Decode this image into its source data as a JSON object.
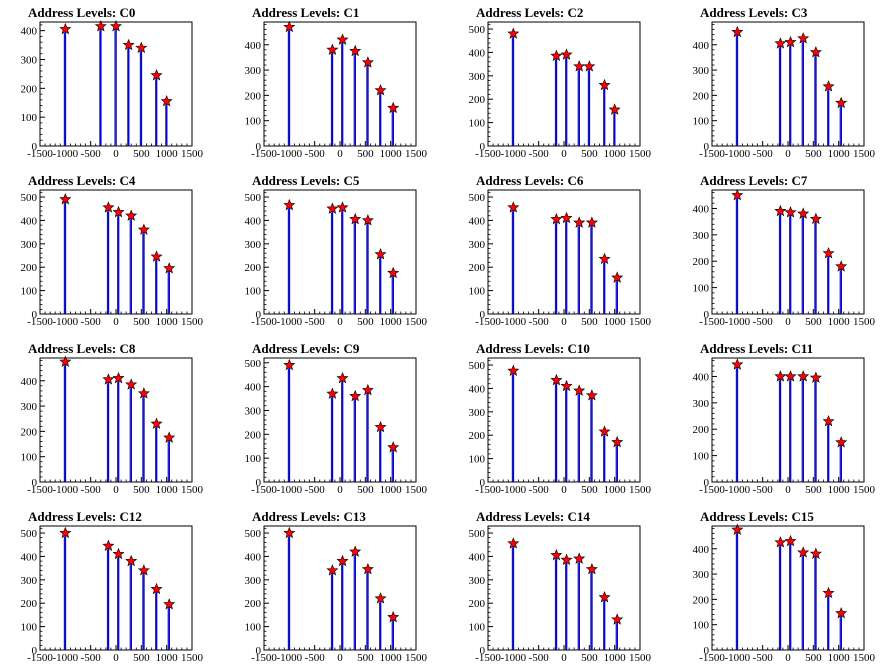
{
  "chart_data": [
    {
      "type": "bar",
      "title": "Address Levels: C0",
      "xlim": [
        -1500,
        1500
      ],
      "ylim": [
        0,
        430
      ],
      "xticks": [
        -1500,
        -1000,
        -500,
        0,
        500,
        1000,
        1500
      ],
      "yticks": [
        0,
        100,
        200,
        300,
        400
      ],
      "x": [
        -1000,
        -300,
        0,
        250,
        500,
        800,
        1000
      ],
      "peaks": [
        405,
        415,
        415,
        350,
        340,
        245,
        155
      ],
      "marker_x": [
        -1000,
        -300,
        0,
        250,
        500,
        800,
        1000
      ]
    },
    {
      "type": "bar",
      "title": "Address Levels: C1",
      "xlim": [
        -1500,
        1500
      ],
      "ylim": [
        0,
        490
      ],
      "xticks": [
        -1500,
        -1000,
        -500,
        0,
        500,
        1000,
        1500
      ],
      "yticks": [
        0,
        100,
        200,
        300,
        400
      ],
      "x": [
        -1000,
        -150,
        50,
        300,
        550,
        800,
        1050
      ],
      "peaks": [
        470,
        380,
        420,
        375,
        330,
        220,
        150
      ],
      "marker_x": [
        -1000,
        -150,
        50,
        300,
        550,
        800,
        1050
      ]
    },
    {
      "type": "bar",
      "title": "Address Levels: C2",
      "xlim": [
        -1500,
        1500
      ],
      "ylim": [
        0,
        530
      ],
      "xticks": [
        -1500,
        -1000,
        -500,
        0,
        500,
        1000,
        1500
      ],
      "yticks": [
        0,
        100,
        200,
        300,
        400,
        500
      ],
      "x": [
        -1000,
        -150,
        50,
        300,
        500,
        800,
        1000
      ],
      "peaks": [
        480,
        385,
        390,
        340,
        340,
        260,
        155
      ],
      "marker_x": [
        -1000,
        -150,
        50,
        300,
        500,
        800,
        1000
      ]
    },
    {
      "type": "bar",
      "title": "Address Levels: C3",
      "xlim": [
        -1500,
        1500
      ],
      "ylim": [
        0,
        490
      ],
      "xticks": [
        -1500,
        -1000,
        -500,
        0,
        500,
        1000,
        1500
      ],
      "yticks": [
        0,
        100,
        200,
        300,
        400
      ],
      "x": [
        -1000,
        -150,
        50,
        300,
        550,
        800,
        1050
      ],
      "peaks": [
        450,
        405,
        410,
        425,
        370,
        235,
        170
      ],
      "marker_x": [
        -1000,
        -150,
        50,
        300,
        550,
        800,
        1050
      ]
    },
    {
      "type": "bar",
      "title": "Address Levels: C4",
      "xlim": [
        -1500,
        1500
      ],
      "ylim": [
        0,
        530
      ],
      "xticks": [
        -1500,
        -1000,
        -500,
        0,
        500,
        1000,
        1500
      ],
      "yticks": [
        0,
        100,
        200,
        300,
        400,
        500
      ],
      "x": [
        -1000,
        -150,
        50,
        300,
        550,
        800,
        1050
      ],
      "peaks": [
        490,
        455,
        435,
        420,
        360,
        245,
        195
      ],
      "marker_x": [
        -1000,
        -150,
        50,
        300,
        550,
        800,
        1050
      ]
    },
    {
      "type": "bar",
      "title": "Address Levels: C5",
      "xlim": [
        -1500,
        1500
      ],
      "ylim": [
        0,
        530
      ],
      "xticks": [
        -1500,
        -1000,
        -500,
        0,
        500,
        1000,
        1500
      ],
      "yticks": [
        0,
        100,
        200,
        300,
        400,
        500
      ],
      "x": [
        -1000,
        -150,
        50,
        300,
        550,
        800,
        1050
      ],
      "peaks": [
        465,
        450,
        455,
        405,
        400,
        255,
        175
      ],
      "marker_x": [
        -1000,
        -150,
        50,
        300,
        550,
        800,
        1050
      ]
    },
    {
      "type": "bar",
      "title": "Address Levels: C6",
      "xlim": [
        -1500,
        1500
      ],
      "ylim": [
        0,
        530
      ],
      "xticks": [
        -1500,
        -1000,
        -500,
        0,
        500,
        1000,
        1500
      ],
      "yticks": [
        0,
        100,
        200,
        300,
        400,
        500
      ],
      "x": [
        -1000,
        -150,
        50,
        300,
        550,
        800,
        1050
      ],
      "peaks": [
        455,
        405,
        410,
        390,
        390,
        235,
        155
      ],
      "marker_x": [
        -1000,
        -150,
        50,
        300,
        550,
        800,
        1050
      ]
    },
    {
      "type": "bar",
      "title": "Address Levels: C7",
      "xlim": [
        -1500,
        1500
      ],
      "ylim": [
        0,
        470
      ],
      "xticks": [
        -1500,
        -1000,
        -500,
        0,
        500,
        1000,
        1500
      ],
      "yticks": [
        0,
        100,
        200,
        300,
        400
      ],
      "x": [
        -1000,
        -150,
        50,
        300,
        550,
        800,
        1050
      ],
      "peaks": [
        450,
        390,
        385,
        380,
        360,
        230,
        180
      ],
      "marker_x": [
        -1000,
        -150,
        50,
        300,
        550,
        800,
        1050
      ]
    },
    {
      "type": "bar",
      "title": "Address Levels: C8",
      "xlim": [
        -1500,
        1500
      ],
      "ylim": [
        0,
        490
      ],
      "xticks": [
        -1500,
        -1000,
        -500,
        0,
        500,
        1000,
        1500
      ],
      "yticks": [
        0,
        100,
        200,
        300,
        400
      ],
      "x": [
        -1000,
        -150,
        50,
        300,
        550,
        800,
        1050
      ],
      "peaks": [
        475,
        405,
        410,
        385,
        350,
        230,
        175
      ],
      "marker_x": [
        -1000,
        -150,
        50,
        300,
        550,
        800,
        1050
      ]
    },
    {
      "type": "bar",
      "title": "Address Levels: C9",
      "xlim": [
        -1500,
        1500
      ],
      "ylim": [
        0,
        520
      ],
      "xticks": [
        -1500,
        -1000,
        -500,
        0,
        500,
        1000,
        1500
      ],
      "yticks": [
        0,
        100,
        200,
        300,
        400,
        500
      ],
      "x": [
        -1000,
        -150,
        50,
        300,
        550,
        800,
        1050
      ],
      "peaks": [
        490,
        370,
        435,
        360,
        385,
        230,
        145
      ],
      "marker_x": [
        -1000,
        -150,
        50,
        300,
        550,
        800,
        1050
      ]
    },
    {
      "type": "bar",
      "title": "Address Levels: C10",
      "xlim": [
        -1500,
        1500
      ],
      "ylim": [
        0,
        530
      ],
      "xticks": [
        -1500,
        -1000,
        -500,
        0,
        500,
        1000,
        1500
      ],
      "yticks": [
        0,
        100,
        200,
        300,
        400,
        500
      ],
      "x": [
        -1000,
        -150,
        50,
        300,
        550,
        800,
        1050
      ],
      "peaks": [
        475,
        435,
        410,
        390,
        370,
        215,
        170
      ],
      "marker_x": [
        -1000,
        -150,
        50,
        300,
        550,
        800,
        1050
      ]
    },
    {
      "type": "bar",
      "title": "Address Levels: C11",
      "xlim": [
        -1500,
        1500
      ],
      "ylim": [
        0,
        470
      ],
      "xticks": [
        -1500,
        -1000,
        -500,
        0,
        500,
        1000,
        1500
      ],
      "yticks": [
        0,
        100,
        200,
        300,
        400
      ],
      "x": [
        -1000,
        -150,
        50,
        300,
        550,
        800,
        1050
      ],
      "peaks": [
        445,
        400,
        400,
        400,
        395,
        230,
        150
      ],
      "marker_x": [
        -1000,
        -150,
        50,
        300,
        550,
        800,
        1050
      ]
    },
    {
      "type": "bar",
      "title": "Address Levels: C12",
      "xlim": [
        -1500,
        1500
      ],
      "ylim": [
        0,
        530
      ],
      "xticks": [
        -1500,
        -1000,
        -500,
        0,
        500,
        1000,
        1500
      ],
      "yticks": [
        0,
        100,
        200,
        300,
        400,
        500
      ],
      "x": [
        -1000,
        -150,
        50,
        300,
        550,
        800,
        1050
      ],
      "peaks": [
        500,
        445,
        410,
        380,
        340,
        260,
        195
      ],
      "marker_x": [
        -1000,
        -150,
        50,
        300,
        550,
        800,
        1050
      ]
    },
    {
      "type": "bar",
      "title": "Address Levels: C13",
      "xlim": [
        -1500,
        1500
      ],
      "ylim": [
        0,
        530
      ],
      "xticks": [
        -1500,
        -1000,
        -500,
        0,
        500,
        1000,
        1500
      ],
      "yticks": [
        0,
        100,
        200,
        300,
        400,
        500
      ],
      "x": [
        -1000,
        -150,
        50,
        300,
        550,
        800,
        1050
      ],
      "peaks": [
        500,
        340,
        380,
        420,
        345,
        220,
        140
      ],
      "marker_x": [
        -1000,
        -150,
        50,
        300,
        550,
        800,
        1050
      ]
    },
    {
      "type": "bar",
      "title": "Address Levels: C14",
      "xlim": [
        -1500,
        1500
      ],
      "ylim": [
        0,
        530
      ],
      "xticks": [
        -1500,
        -1000,
        -500,
        0,
        500,
        1000,
        1500
      ],
      "yticks": [
        0,
        100,
        200,
        300,
        400,
        500
      ],
      "x": [
        -1000,
        -150,
        50,
        300,
        550,
        800,
        1050
      ],
      "peaks": [
        455,
        405,
        385,
        390,
        345,
        225,
        130
      ],
      "marker_x": [
        -1000,
        -150,
        50,
        300,
        550,
        800,
        1050
      ]
    },
    {
      "type": "bar",
      "title": "Address Levels: C15",
      "xlim": [
        -1500,
        1500
      ],
      "ylim": [
        0,
        490
      ],
      "xticks": [
        -1500,
        -1000,
        -500,
        0,
        500,
        1000,
        1500
      ],
      "yticks": [
        0,
        100,
        200,
        300,
        400
      ],
      "x": [
        -1000,
        -150,
        50,
        300,
        550,
        800,
        1050
      ],
      "peaks": [
        475,
        425,
        430,
        385,
        380,
        225,
        145
      ],
      "marker_x": [
        -1000,
        -150,
        50,
        300,
        550,
        800,
        1050
      ]
    }
  ],
  "colors": {
    "bar": "#0000ff",
    "marker_fill": "#ff0000",
    "marker_stroke": "#000000",
    "axis": "#000000"
  }
}
